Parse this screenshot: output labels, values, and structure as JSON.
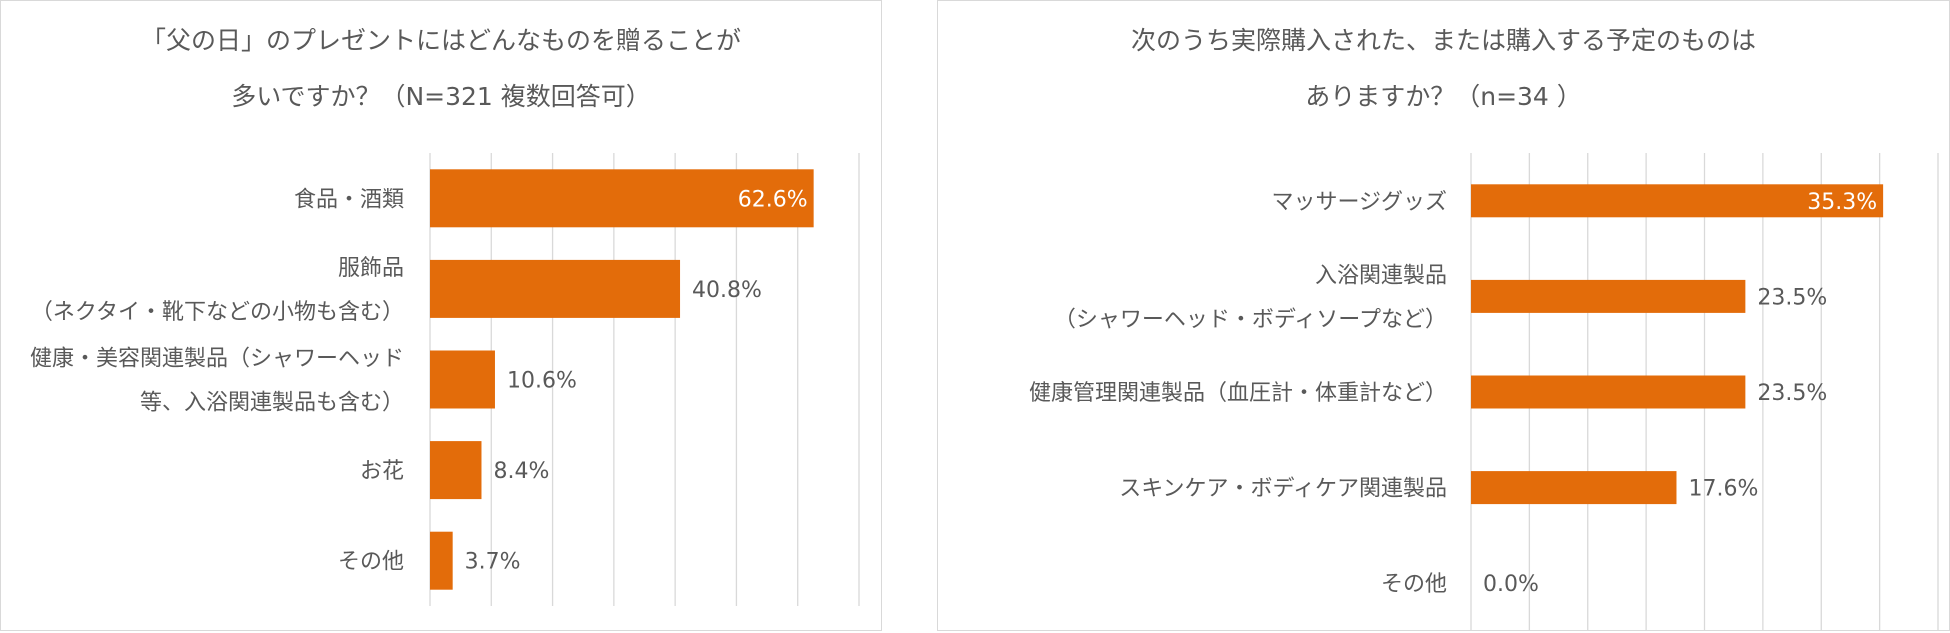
{
  "colors": {
    "bar": "#e36c0a",
    "grid": "#d9d9d9",
    "text": "#595959"
  },
  "chart_data": [
    {
      "type": "bar",
      "orientation": "horizontal",
      "title_line1": "「父の日」のプレゼントにはどんなものを贈ることが",
      "title_line2": "多いですか？（N=321 複数回答可）",
      "categories": [
        [
          "食品・酒類"
        ],
        [
          "服飾品",
          "（ネクタイ・靴下などの小物も含む）"
        ],
        [
          "健康・美容関連製品（シャワーヘッド",
          "等、入浴関連製品も含む）"
        ],
        [
          "お花"
        ],
        [
          "その他"
        ]
      ],
      "values": [
        62.6,
        40.8,
        10.6,
        8.4,
        3.7
      ],
      "labels": [
        "62.6%",
        "40.8%",
        "10.6%",
        "8.4%",
        "3.7%"
      ],
      "xlim": [
        0,
        70
      ],
      "grid": true
    },
    {
      "type": "bar",
      "orientation": "horizontal",
      "title_line1": "次のうち実際購入された、または購入する予定のものは",
      "title_line2": "ありますか？（n=34 ）",
      "categories": [
        [
          "マッサージグッズ"
        ],
        [
          "入浴関連製品",
          "（シャワーヘッド・ボディソープなど）"
        ],
        [
          "健康管理関連製品（血圧計・体重計など）"
        ],
        [
          "スキンケア・ボディケア関連製品"
        ],
        [
          "その他"
        ]
      ],
      "values": [
        35.3,
        23.5,
        23.5,
        17.6,
        0.0
      ],
      "labels": [
        "35.3%",
        "23.5%",
        "23.5%",
        "17.6%",
        "0.0%"
      ],
      "xlim": [
        0,
        40
      ],
      "grid": true
    }
  ]
}
